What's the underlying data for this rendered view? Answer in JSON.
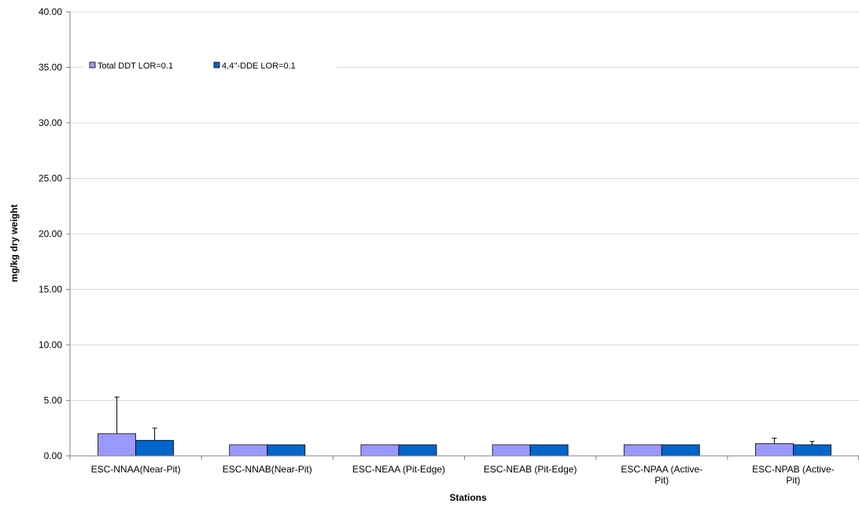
{
  "chart_data": {
    "type": "bar",
    "xlabel": "Stations",
    "ylabel": "mg/kg dry weight",
    "ylim": [
      0,
      40
    ],
    "yticks": [
      "0.00",
      "5.00",
      "10.00",
      "15.00",
      "20.00",
      "25.00",
      "30.00",
      "35.00",
      "40.00"
    ],
    "grid": true,
    "legend_position": "top-left",
    "categories": [
      [
        "ESC-NNAA(Near-Pit)"
      ],
      [
        "ESC-NNAB(Near-Pit)"
      ],
      [
        "ESC-NEAA (Pit-Edge)"
      ],
      [
        "ESC-NEAB (Pit-Edge)"
      ],
      [
        "ESC-NPAA (Active-",
        "Pit)"
      ],
      [
        "ESC-NPAB (Active-",
        "Pit)"
      ]
    ],
    "series": [
      {
        "name": "Total DDT LOR=0.1",
        "color": "#9999ff",
        "values": [
          2.0,
          1.0,
          1.0,
          1.0,
          1.0,
          1.1
        ],
        "error_upper": [
          5.3,
          null,
          null,
          null,
          null,
          1.6
        ]
      },
      {
        "name": "4,4''-DDE LOR=0.1",
        "color": "#0066cc",
        "values": [
          1.4,
          1.0,
          1.0,
          1.0,
          1.0,
          1.0
        ],
        "error_upper": [
          2.5,
          null,
          null,
          null,
          null,
          1.3
        ]
      }
    ]
  }
}
